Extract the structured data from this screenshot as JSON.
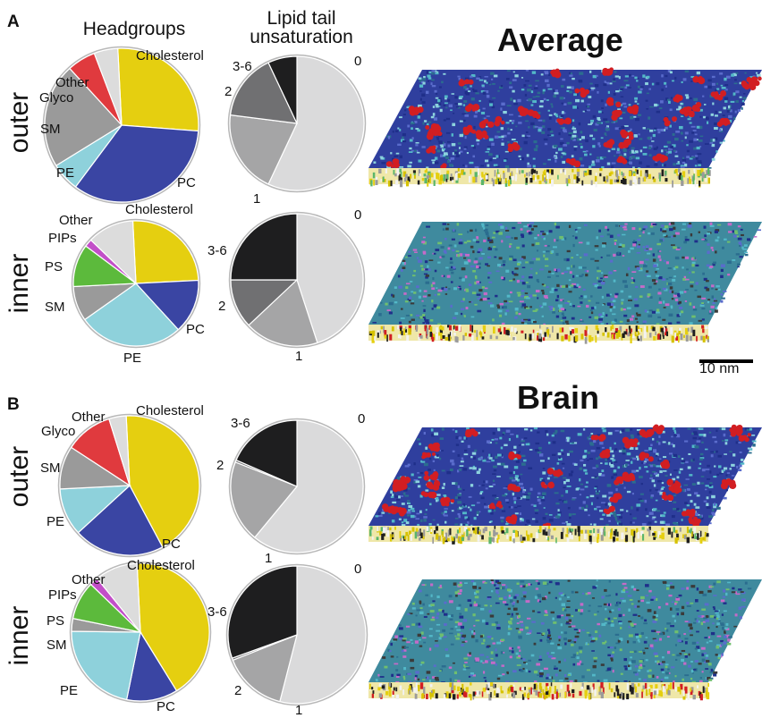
{
  "panels": [
    {
      "letter": "A",
      "title": "Average",
      "rows": [
        {
          "side_label": "outer",
          "headgroups": [
            {
              "name": "Cholesterol",
              "value": 27,
              "color": "#e5cf10"
            },
            {
              "name": "PC",
              "value": 34,
              "color": "#3a45a3"
            },
            {
              "name": "PE",
              "value": 6,
              "color": "#8ed1db"
            },
            {
              "name": "SM",
              "value": 22,
              "color": "#9a9a9a"
            },
            {
              "name": "Glyco",
              "value": 6,
              "color": "#e03a3e"
            },
            {
              "name": "Other",
              "value": 5,
              "color": "#dcdcdc"
            }
          ],
          "unsaturation": [
            {
              "name": "0",
              "value": 57,
              "color": "#dadadb"
            },
            {
              "name": "1",
              "value": 20,
              "color": "#a5a5a6"
            },
            {
              "name": "2",
              "value": 16,
              "color": "#707072"
            },
            {
              "name": "3-6",
              "value": 7,
              "color": "#1e1e1f"
            }
          ]
        },
        {
          "side_label": "inner",
          "headgroups": [
            {
              "name": "Cholesterol",
              "value": 25,
              "color": "#e5cf10"
            },
            {
              "name": "PC",
              "value": 14,
              "color": "#3a45a3"
            },
            {
              "name": "PE",
              "value": 27,
              "color": "#8ed1db"
            },
            {
              "name": "SM",
              "value": 9,
              "color": "#9a9a9a"
            },
            {
              "name": "PS",
              "value": 11,
              "color": "#5cba3c"
            },
            {
              "name": "PIPs",
              "value": 2,
              "color": "#c24fc8"
            },
            {
              "name": "Other",
              "value": 12,
              "color": "#dcdcdc"
            }
          ],
          "unsaturation": [
            {
              "name": "0",
              "value": 45,
              "color": "#dadadb"
            },
            {
              "name": "1",
              "value": 18,
              "color": "#a5a5a6"
            },
            {
              "name": "2",
              "value": 12,
              "color": "#707072"
            },
            {
              "name": "3-6",
              "value": 25,
              "color": "#1e1e1f"
            }
          ]
        }
      ]
    },
    {
      "letter": "B",
      "title": "Brain",
      "rows": [
        {
          "side_label": "outer",
          "headgroups": [
            {
              "name": "Cholesterol",
              "value": 43,
              "color": "#e5cf10"
            },
            {
              "name": "PC",
              "value": 21,
              "color": "#3a45a3"
            },
            {
              "name": "PE",
              "value": 11,
              "color": "#8ed1db"
            },
            {
              "name": "SM",
              "value": 10,
              "color": "#9a9a9a"
            },
            {
              "name": "Glyco",
              "value": 11,
              "color": "#e03a3e"
            },
            {
              "name": "Other",
              "value": 4,
              "color": "#dcdcdc"
            }
          ],
          "unsaturation": [
            {
              "name": "0",
              "value": 61,
              "color": "#dadadb"
            },
            {
              "name": "1",
              "value": 20,
              "color": "#a5a5a6"
            },
            {
              "name": "2",
              "value": 0.5,
              "color": "#707072"
            },
            {
              "name": "3-6",
              "value": 18.5,
              "color": "#1e1e1f"
            }
          ]
        },
        {
          "side_label": "inner",
          "headgroups": [
            {
              "name": "Cholesterol",
              "value": 42,
              "color": "#e5cf10"
            },
            {
              "name": "PC",
              "value": 12,
              "color": "#3a45a3"
            },
            {
              "name": "PE",
              "value": 22,
              "color": "#8ed1db"
            },
            {
              "name": "SM",
              "value": 3,
              "color": "#9a9a9a"
            },
            {
              "name": "PS",
              "value": 9,
              "color": "#5cba3c"
            },
            {
              "name": "PIPs",
              "value": 2,
              "color": "#c24fc8"
            },
            {
              "name": "Other",
              "value": 10,
              "color": "#dcdcdc"
            }
          ],
          "unsaturation": [
            {
              "name": "0",
              "value": 54,
              "color": "#dadadb"
            },
            {
              "name": "1",
              "value": 15,
              "color": "#a5a5a6"
            },
            {
              "name": "2",
              "value": 0.5,
              "color": "#707072"
            },
            {
              "name": "3-6",
              "value": 30.5,
              "color": "#1e1e1f"
            }
          ]
        }
      ]
    }
  ],
  "column_headers": {
    "headgroups": "Headgroups",
    "unsaturation_line1": "Lipid tail",
    "unsaturation_line2": "unsaturation"
  },
  "scale_bar": {
    "label": "10 nm"
  },
  "chart_data": [
    {
      "type": "pie",
      "title": "",
      "panel": "A",
      "leaflet": "outer",
      "kind": "Headgroups",
      "categories": [
        "Cholesterol",
        "PC",
        "PE",
        "SM",
        "Glyco",
        "Other"
      ],
      "values": [
        27,
        34,
        6,
        22,
        6,
        5
      ]
    },
    {
      "type": "pie",
      "title": "",
      "panel": "A",
      "leaflet": "outer",
      "kind": "Lipid tail unsaturation",
      "categories": [
        "0",
        "1",
        "2",
        "3-6"
      ],
      "values": [
        57,
        20,
        16,
        7
      ]
    },
    {
      "type": "pie",
      "title": "",
      "panel": "A",
      "leaflet": "inner",
      "kind": "Headgroups",
      "categories": [
        "Cholesterol",
        "PC",
        "PE",
        "SM",
        "PS",
        "PIPs",
        "Other"
      ],
      "values": [
        25,
        14,
        27,
        9,
        11,
        2,
        12
      ]
    },
    {
      "type": "pie",
      "title": "",
      "panel": "A",
      "leaflet": "inner",
      "kind": "Lipid tail unsaturation",
      "categories": [
        "0",
        "1",
        "2",
        "3-6"
      ],
      "values": [
        45,
        18,
        12,
        25
      ]
    },
    {
      "type": "pie",
      "title": "",
      "panel": "B",
      "leaflet": "outer",
      "kind": "Headgroups",
      "categories": [
        "Cholesterol",
        "PC",
        "PE",
        "SM",
        "Glyco",
        "Other"
      ],
      "values": [
        43,
        21,
        11,
        10,
        11,
        4
      ]
    },
    {
      "type": "pie",
      "title": "",
      "panel": "B",
      "leaflet": "outer",
      "kind": "Lipid tail unsaturation",
      "categories": [
        "0",
        "1",
        "2",
        "3-6"
      ],
      "values": [
        61,
        20,
        0.5,
        18.5
      ]
    },
    {
      "type": "pie",
      "title": "",
      "panel": "B",
      "leaflet": "inner",
      "kind": "Headgroups",
      "categories": [
        "Cholesterol",
        "PC",
        "PE",
        "SM",
        "PS",
        "PIPs",
        "Other"
      ],
      "values": [
        42,
        12,
        22,
        3,
        9,
        2,
        10
      ]
    },
    {
      "type": "pie",
      "title": "",
      "panel": "B",
      "leaflet": "inner",
      "kind": "Lipid tail unsaturation",
      "categories": [
        "0",
        "1",
        "2",
        "3-6"
      ],
      "values": [
        54,
        15,
        0.5,
        30.5
      ]
    }
  ]
}
